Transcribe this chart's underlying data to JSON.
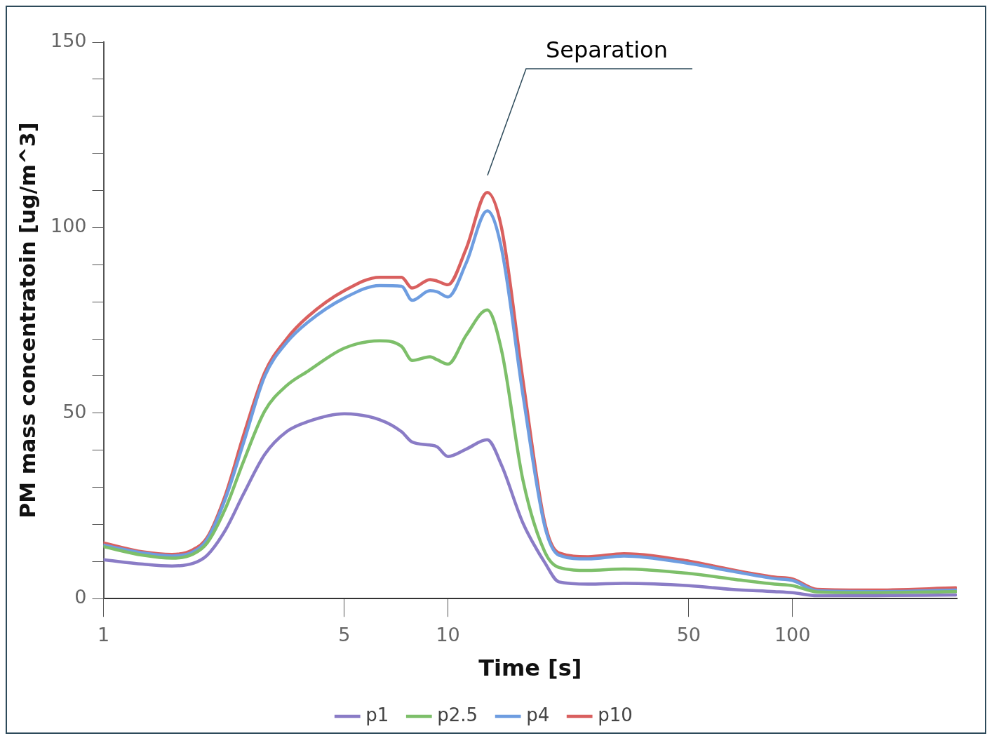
{
  "chart_data": {
    "type": "line",
    "xlabel": "Time [s]",
    "ylabel": "PM mass concentratoin [ug/m^3]",
    "log": "x",
    "xlim": [
      1,
      300
    ],
    "xticks": [
      1,
      5,
      10,
      50,
      100
    ],
    "ylim": [
      0,
      150
    ],
    "yticks": [
      0,
      {
        "value": 10,
        "label": null
      },
      {
        "value": 20,
        "label": null
      },
      {
        "value": 30,
        "label": null
      },
      {
        "value": 40,
        "label": null
      },
      50,
      {
        "value": 60,
        "label": null
      },
      {
        "value": 70,
        "label": null
      },
      {
        "value": 80,
        "label": null
      },
      {
        "value": 90,
        "label": null
      },
      100,
      {
        "value": 110,
        "label": null
      },
      {
        "value": 120,
        "label": null
      },
      {
        "value": 130,
        "label": null
      },
      {
        "value": 140,
        "label": null
      },
      150
    ],
    "grid": false,
    "legend": "bottom",
    "marker": "none",
    "line_style": "solid",
    "x": [
      1,
      1.3,
      1.58,
      1.82,
      2,
      2.26,
      2.55,
      2.94,
      3.4,
      3.92,
      5,
      6.34,
      7.33,
      7.87,
      8.87,
      9.3,
      10,
      11.3,
      13,
      14.3,
      16.5,
      19.1,
      21,
      25.5,
      32.4,
      50,
      66.5,
      88.7,
      100,
      118,
      174,
      298
    ],
    "annotations": [
      "Separation"
    ],
    "series": [
      {
        "name": "p1",
        "color": "#8a7cc6",
        "values": [
          10.5,
          9.3,
          8.8,
          9.5,
          11.7,
          18.5,
          28.2,
          38.9,
          45,
          47.7,
          49.8,
          48.2,
          45,
          42.2,
          41.4,
          40.9,
          38.3,
          40.3,
          42.8,
          36,
          20.4,
          9.7,
          4.5,
          3.9,
          4.1,
          3.5,
          2.5,
          1.9,
          1.6,
          0.8,
          0.8,
          1
        ]
      },
      {
        "name": "p2.5",
        "color": "#7dbf6a",
        "values": [
          14,
          11.7,
          10.9,
          12,
          15,
          24.3,
          37,
          50.6,
          57.4,
          61.3,
          67.5,
          69.5,
          68,
          64.2,
          65.2,
          64.4,
          63.2,
          71,
          77.8,
          67,
          32,
          12.6,
          8.4,
          7.6,
          8,
          6.8,
          5.3,
          3.9,
          3.5,
          1.8,
          1.6,
          1.9
        ]
      },
      {
        "name": "p4",
        "color": "#6e9de0",
        "values": [
          14.4,
          12.3,
          11.5,
          12.6,
          16,
          27,
          42,
          60,
          69,
          74.5,
          81,
          84.4,
          84.2,
          80.4,
          83,
          82.7,
          81.3,
          90.5,
          104.5,
          94.4,
          55,
          19.5,
          11.7,
          10.7,
          11.5,
          9.5,
          7.4,
          5.4,
          4.9,
          2.1,
          1.9,
          2.3
        ]
      },
      {
        "name": "p10",
        "color": "#d9605f",
        "values": [
          15,
          12.6,
          11.9,
          13.2,
          16.5,
          28,
          44,
          61,
          70,
          76,
          83,
          86.6,
          86.6,
          83.7,
          86,
          85.6,
          84.6,
          94.4,
          109.5,
          100,
          59,
          20.4,
          12.3,
          11.3,
          12.1,
          10.1,
          7.8,
          5.8,
          5.3,
          2.5,
          2.3,
          2.9
        ]
      }
    ]
  }
}
